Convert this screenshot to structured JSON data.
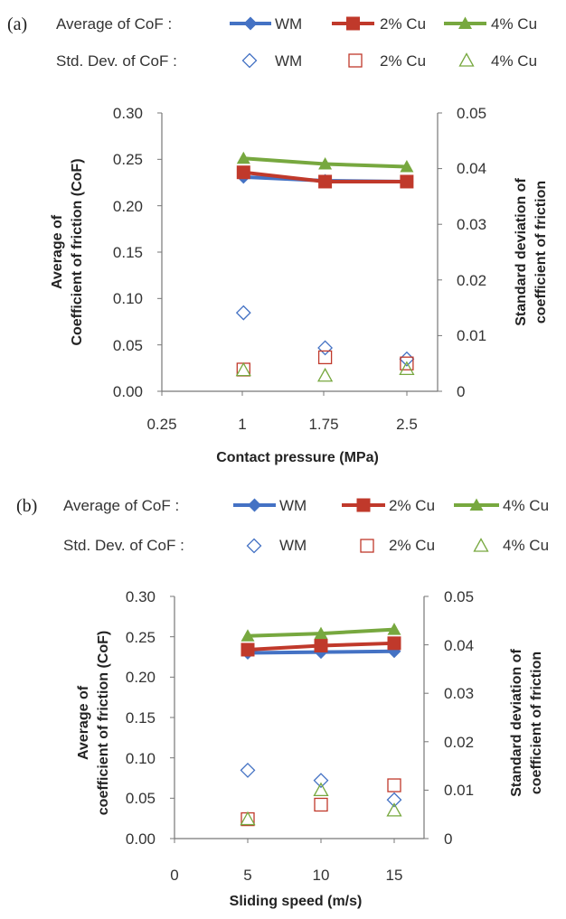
{
  "legend": {
    "avg_label": "Average of CoF  :",
    "std_label": "Std. Dev. of CoF :",
    "series": [
      {
        "name": "WM",
        "color": "#4472c4",
        "avg_marker": "diamond",
        "std_marker": "diamond-open"
      },
      {
        "name": "2% Cu",
        "color": "#c0392b",
        "avg_marker": "square",
        "std_marker": "square-open"
      },
      {
        "name": "4% Cu",
        "color": "#77a83f",
        "avg_marker": "triangle",
        "std_marker": "triangle-open"
      }
    ]
  },
  "chart_data": [
    {
      "panel": "(a)",
      "type": "line",
      "xlabel": "Contact pressure (MPa)",
      "ylabel_left": [
        "Average of",
        "Coefficient of friction (CoF)"
      ],
      "ylabel_right": [
        "Standard deviation of",
        "coefficient of friction"
      ],
      "x_ticks": [
        "0.25",
        "1",
        "1.75",
        "2.5"
      ],
      "x": [
        1,
        1.75,
        2.5
      ],
      "y_left_ticks": [
        "0.30",
        "0.25",
        "0.20",
        "0.15",
        "0.10",
        "0.05",
        "0.00"
      ],
      "y_right_ticks": [
        "0.05",
        "0.04",
        "0.03",
        "0.02",
        "0.01",
        "0"
      ],
      "ylim_left": [
        0,
        0.3
      ],
      "ylim_right": [
        0,
        0.05
      ],
      "average": [
        {
          "name": "WM",
          "values": [
            0.231,
            0.227,
            0.226
          ]
        },
        {
          "name": "2% Cu",
          "values": [
            0.236,
            0.226,
            0.226
          ]
        },
        {
          "name": "4% Cu",
          "values": [
            0.251,
            0.245,
            0.242
          ]
        }
      ],
      "std_dev": [
        {
          "name": "WM",
          "values": [
            0.0141,
            0.0078,
            0.0058
          ]
        },
        {
          "name": "2% Cu",
          "values": [
            0.0039,
            0.0061,
            0.005
          ]
        },
        {
          "name": "4% Cu",
          "values": [
            0.0038,
            0.0028,
            0.004
          ]
        }
      ]
    },
    {
      "panel": "(b)",
      "type": "line",
      "xlabel": "Sliding speed (m/s)",
      "ylabel_left": [
        "Average of",
        "coefficient of friction (CoF)"
      ],
      "ylabel_right": [
        "Standard deviation of",
        "coefficient of friction"
      ],
      "x_ticks": [
        "0",
        "5",
        "10",
        "15"
      ],
      "x": [
        5,
        10,
        15
      ],
      "y_left_ticks": [
        "0.30",
        "0.25",
        "0.20",
        "0.15",
        "0.10",
        "0.05",
        "0.00"
      ],
      "y_right_ticks": [
        "0.05",
        "0.04",
        "0.03",
        "0.02",
        "0.01",
        "0"
      ],
      "ylim_left": [
        0,
        0.3
      ],
      "ylim_right": [
        0,
        0.05
      ],
      "average": [
        {
          "name": "WM",
          "values": [
            0.23,
            0.231,
            0.232
          ]
        },
        {
          "name": "2% Cu",
          "values": [
            0.234,
            0.239,
            0.242
          ]
        },
        {
          "name": "4% Cu",
          "values": [
            0.251,
            0.254,
            0.259
          ]
        }
      ],
      "std_dev": [
        {
          "name": "WM",
          "values": [
            0.0141,
            0.012,
            0.008
          ]
        },
        {
          "name": "2% Cu",
          "values": [
            0.004,
            0.007,
            0.011
          ]
        },
        {
          "name": "4% Cu",
          "values": [
            0.004,
            0.01,
            0.0058
          ]
        }
      ]
    }
  ]
}
